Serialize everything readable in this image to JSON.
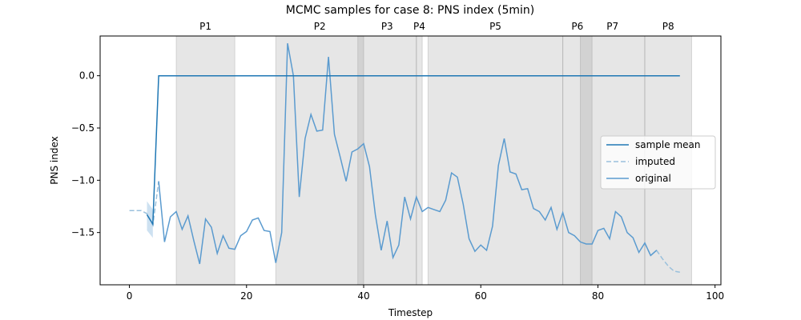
{
  "chart_data": {
    "type": "line",
    "title": "MCMC samples for case 8: PNS index (5min)",
    "xlabel": "Timestep",
    "ylabel": "PNS index",
    "xlim": [
      -5,
      101
    ],
    "ylim": [
      -2.0,
      0.38
    ],
    "xticks": [
      0,
      20,
      40,
      60,
      80,
      100
    ],
    "yticks": [
      -1.5,
      -1.0,
      -0.5,
      0.0
    ],
    "ytick_labels": [
      "−1.5",
      "−1.0",
      "−0.5",
      "0.0"
    ],
    "grid": false,
    "legend_position": "center-right",
    "phases": [
      {
        "label": "P1",
        "start": 8,
        "end": 18
      },
      {
        "label": "P2",
        "start": 25,
        "end": 40
      },
      {
        "label": "P3",
        "start": 39,
        "end": 49
      },
      {
        "label": "P4",
        "start": 49,
        "end": 50
      },
      {
        "label": "P5",
        "start": 51,
        "end": 74
      },
      {
        "label": "P6",
        "start": 74,
        "end": 79
      },
      {
        "label": "P7",
        "start": 77,
        "end": 88
      },
      {
        "label": "P8",
        "start": 88,
        "end": 96
      }
    ],
    "series": [
      {
        "name": "sample mean",
        "color": "#1f77b4",
        "style": "solid",
        "x": [
          3,
          4,
          5,
          94
        ],
        "y": [
          -1.33,
          -1.42,
          0.0,
          0.0
        ]
      },
      {
        "name": "imputed",
        "color": "#9ac0dc",
        "style": "dashed",
        "segments": [
          {
            "x": [
              0,
              1,
              2,
              3,
              4,
              5
            ],
            "y": [
              -1.29,
              -1.29,
              -1.29,
              -1.32,
              -1.43,
              -1.01
            ]
          },
          {
            "x": [
              88,
              89,
              90,
              91,
              92,
              93,
              94
            ],
            "y": [
              -1.6,
              -1.72,
              -1.67,
              -1.75,
              -1.82,
              -1.87,
              -1.88
            ]
          }
        ]
      },
      {
        "name": "original",
        "color": "#5b9bcf",
        "style": "solid",
        "x": [
          5,
          6,
          7,
          8,
          9,
          10,
          11,
          12,
          13,
          14,
          15,
          16,
          17,
          18,
          19,
          20,
          21,
          22,
          23,
          24,
          25,
          26,
          27,
          28,
          29,
          30,
          31,
          32,
          33,
          34,
          35,
          36,
          37,
          38,
          39,
          40,
          41,
          42,
          43,
          44,
          45,
          46,
          47,
          48,
          49,
          50,
          51,
          52,
          53,
          54,
          55,
          56,
          57,
          58,
          59,
          60,
          61,
          62,
          63,
          64,
          65,
          66,
          67,
          68,
          69,
          70,
          71,
          72,
          73,
          74,
          75,
          76,
          77,
          78,
          79,
          80,
          81,
          82,
          83,
          84,
          85,
          86,
          87,
          88,
          89,
          90
        ],
        "y": [
          -1.01,
          -1.59,
          -1.35,
          -1.3,
          -1.47,
          -1.34,
          -1.58,
          -1.8,
          -1.37,
          -1.45,
          -1.7,
          -1.53,
          -1.65,
          -1.66,
          -1.53,
          -1.49,
          -1.38,
          -1.36,
          -1.48,
          -1.49,
          -1.79,
          -1.5,
          0.31,
          0.0,
          -1.16,
          -0.6,
          -0.37,
          -0.53,
          -0.52,
          0.18,
          -0.56,
          -0.78,
          -1.01,
          -0.73,
          -0.7,
          -0.65,
          -0.87,
          -1.33,
          -1.67,
          -1.39,
          -1.74,
          -1.62,
          -1.16,
          -1.37,
          -1.16,
          -1.3,
          -1.26,
          -1.28,
          -1.3,
          -1.19,
          -0.93,
          -0.97,
          -1.23,
          -1.56,
          -1.68,
          -1.62,
          -1.67,
          -1.44,
          -0.86,
          -0.6,
          -0.92,
          -0.94,
          -1.09,
          -1.08,
          -1.27,
          -1.3,
          -1.38,
          -1.26,
          -1.47,
          -1.31,
          -1.5,
          -1.53,
          -1.59,
          -1.61,
          -1.61,
          -1.48,
          -1.46,
          -1.56,
          -1.3,
          -1.35,
          -1.5,
          -1.55,
          -1.69,
          -1.6,
          -1.72,
          -1.67
        ]
      }
    ]
  }
}
